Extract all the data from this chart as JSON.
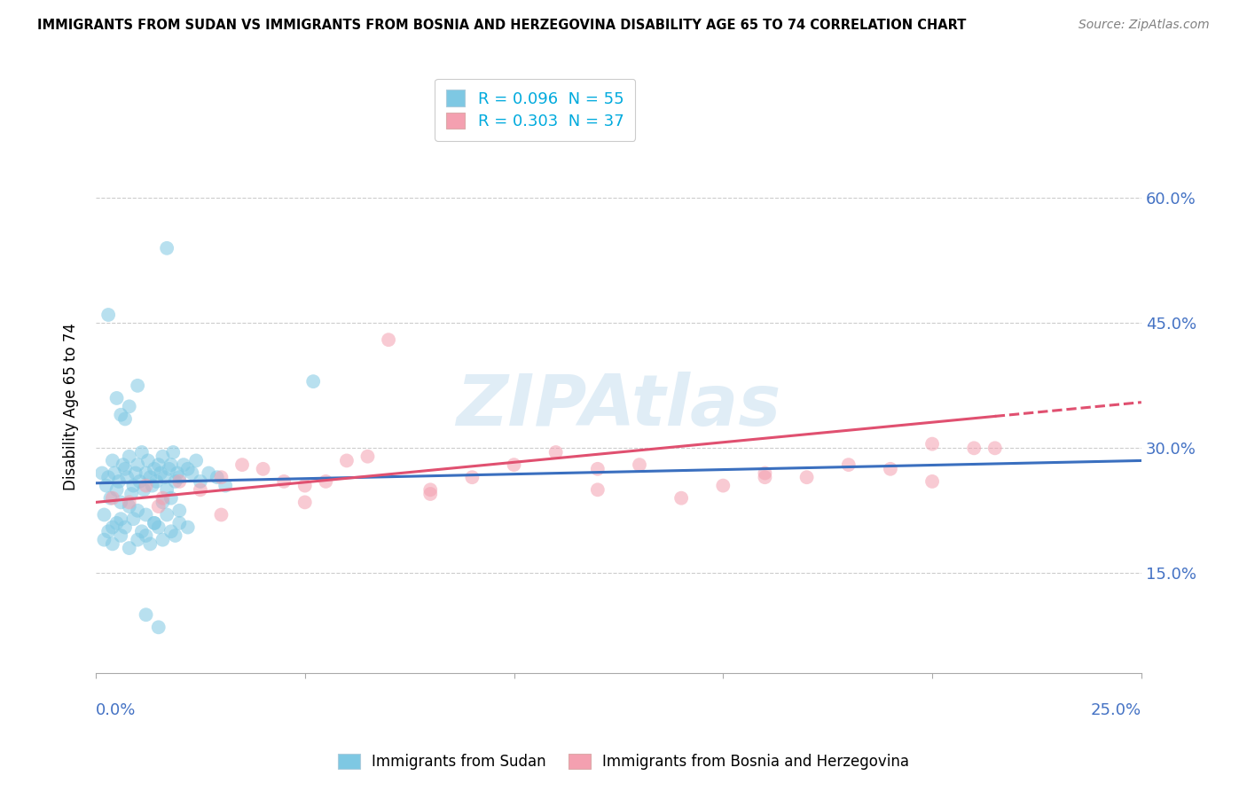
{
  "title": "IMMIGRANTS FROM SUDAN VS IMMIGRANTS FROM BOSNIA AND HERZEGOVINA DISABILITY AGE 65 TO 74 CORRELATION CHART",
  "source": "Source: ZipAtlas.com",
  "ylabel": "Disability Age 65 to 74",
  "xlim": [
    0.0,
    25.0
  ],
  "ylim": [
    3.0,
    67.0
  ],
  "yticks": [
    15.0,
    30.0,
    45.0,
    60.0
  ],
  "ytick_labels": [
    "15.0%",
    "30.0%",
    "45.0%",
    "60.0%"
  ],
  "series1_color": "#7ec8e3",
  "series2_color": "#f4a0b0",
  "series1_line_color": "#3a6fbf",
  "series2_line_color": "#e05070",
  "series1_label": "Immigrants from Sudan",
  "series2_label": "Immigrants from Bosnia and Herzegovina",
  "series1_R": "0.096",
  "series1_N": "55",
  "series2_R": "0.303",
  "series2_N": "37",
  "watermark": "ZIPAtlas",
  "background_color": "#ffffff",
  "sudan_x": [
    0.15,
    0.25,
    0.3,
    0.35,
    0.4,
    0.45,
    0.5,
    0.55,
    0.6,
    0.65,
    0.7,
    0.75,
    0.8,
    0.85,
    0.9,
    0.95,
    1.0,
    1.05,
    1.1,
    1.15,
    1.2,
    1.25,
    1.3,
    1.35,
    1.4,
    1.45,
    1.5,
    1.55,
    1.6,
    1.65,
    1.7,
    1.75,
    1.8,
    1.85,
    1.9,
    1.95,
    2.0,
    2.1,
    2.2,
    2.3,
    2.4,
    2.5,
    2.7,
    2.9,
    3.1,
    0.2,
    0.4,
    0.6,
    0.8,
    1.0,
    1.2,
    1.4,
    1.6,
    1.8,
    2.0
  ],
  "sudan_y": [
    27.0,
    25.5,
    26.5,
    24.0,
    28.5,
    27.0,
    25.0,
    26.0,
    23.5,
    28.0,
    27.5,
    26.5,
    29.0,
    24.5,
    25.5,
    27.0,
    28.0,
    26.0,
    29.5,
    25.0,
    27.0,
    28.5,
    26.5,
    25.5,
    27.5,
    26.0,
    28.0,
    27.0,
    29.0,
    26.5,
    25.0,
    27.5,
    28.0,
    29.5,
    26.0,
    27.0,
    26.5,
    28.0,
    27.5,
    27.0,
    28.5,
    26.0,
    27.0,
    26.5,
    25.5,
    22.0,
    20.5,
    21.5,
    23.0,
    22.5,
    22.0,
    21.0,
    23.5,
    24.0,
    22.5
  ],
  "sudan_outliers_x": [
    0.3,
    1.7,
    5.2,
    0.5,
    0.6,
    0.7,
    0.8,
    1.0,
    1.2,
    1.5
  ],
  "sudan_outliers_y": [
    46.0,
    54.0,
    38.0,
    36.0,
    34.0,
    33.5,
    35.0,
    37.5,
    10.0,
    8.5
  ],
  "sudan_low_x": [
    0.2,
    0.3,
    0.4,
    0.5,
    0.6,
    0.7,
    0.8,
    0.9,
    1.0,
    1.1,
    1.2,
    1.3,
    1.4,
    1.5,
    1.6,
    1.7,
    1.8,
    1.9,
    2.0,
    2.2
  ],
  "sudan_low_y": [
    19.0,
    20.0,
    18.5,
    21.0,
    19.5,
    20.5,
    18.0,
    21.5,
    19.0,
    20.0,
    19.5,
    18.5,
    21.0,
    20.5,
    19.0,
    22.0,
    20.0,
    19.5,
    21.0,
    20.5
  ],
  "bosnia_x": [
    0.4,
    0.8,
    1.2,
    1.6,
    2.0,
    2.5,
    3.0,
    3.5,
    4.0,
    4.5,
    5.0,
    5.5,
    6.0,
    6.5,
    7.0,
    8.0,
    9.0,
    10.0,
    11.0,
    12.0,
    13.0,
    14.0,
    15.0,
    16.0,
    17.0,
    18.0,
    19.0,
    20.0,
    21.0,
    1.5,
    3.0,
    5.0,
    8.0,
    12.0,
    16.0,
    20.0,
    21.5
  ],
  "bosnia_y": [
    24.0,
    23.5,
    25.5,
    24.0,
    26.0,
    25.0,
    26.5,
    28.0,
    27.5,
    26.0,
    25.5,
    26.0,
    28.5,
    29.0,
    43.0,
    25.0,
    26.5,
    28.0,
    29.5,
    27.5,
    28.0,
    24.0,
    25.5,
    27.0,
    26.5,
    28.0,
    27.5,
    26.0,
    30.0,
    23.0,
    22.0,
    23.5,
    24.5,
    25.0,
    26.5,
    30.5,
    30.0
  ],
  "trend1_x0": 0.0,
  "trend1_y0": 25.8,
  "trend1_x1": 25.0,
  "trend1_y1": 28.5,
  "trend2_x0": 0.0,
  "trend2_y0": 23.5,
  "trend2_x1": 25.0,
  "trend2_y1": 35.5,
  "trend2_solid_end": 21.5
}
